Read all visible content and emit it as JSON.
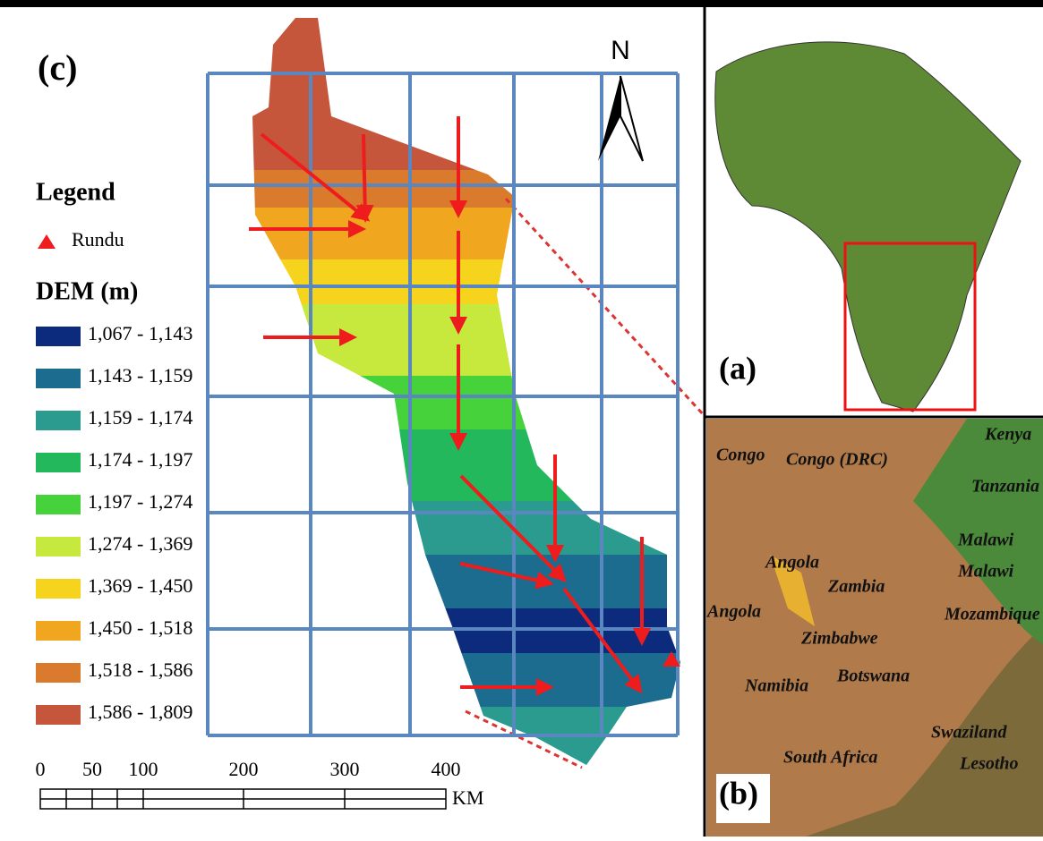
{
  "panel_c": {
    "label": "(c)",
    "north": "N",
    "legend": {
      "title": "Legend",
      "point": "Rundu",
      "dem_title": "DEM (m)",
      "items": [
        {
          "label": "1,067 - 1,143",
          "color": "#0d2b7c"
        },
        {
          "label": "1,143 - 1,159",
          "color": "#1b6c8e"
        },
        {
          "label": "1,159 - 1,174",
          "color": "#2b9b90"
        },
        {
          "label": "1,174 - 1,197",
          "color": "#22b85b"
        },
        {
          "label": "1,197 - 1,274",
          "color": "#46d23a"
        },
        {
          "label": "1,274 - 1,369",
          "color": "#c7e83c"
        },
        {
          "label": "1,369 - 1,450",
          "color": "#f6d31c"
        },
        {
          "label": "1,450 - 1,518",
          "color": "#f0a61f"
        },
        {
          "label": "1,518 - 1,586",
          "color": "#d97a2d"
        },
        {
          "label": "1,586 - 1,809",
          "color": "#c5553b"
        }
      ]
    },
    "scale": {
      "labels": [
        "0",
        "50",
        "100",
        "200",
        "300",
        "400"
      ],
      "unit": "KM"
    }
  },
  "panel_a": {
    "label": "(a)"
  },
  "panel_b": {
    "label": "(b)",
    "countries": [
      "Congo",
      "Congo (DRC)",
      "Kenya",
      "Tanzania",
      "Malawi",
      "Malawi",
      "Angola",
      "Angola",
      "Zambia",
      "Mozambique",
      "Zimbabwe",
      "Namibia",
      "Botswana",
      "Swaziland",
      "South Africa",
      "Lesotho"
    ]
  }
}
